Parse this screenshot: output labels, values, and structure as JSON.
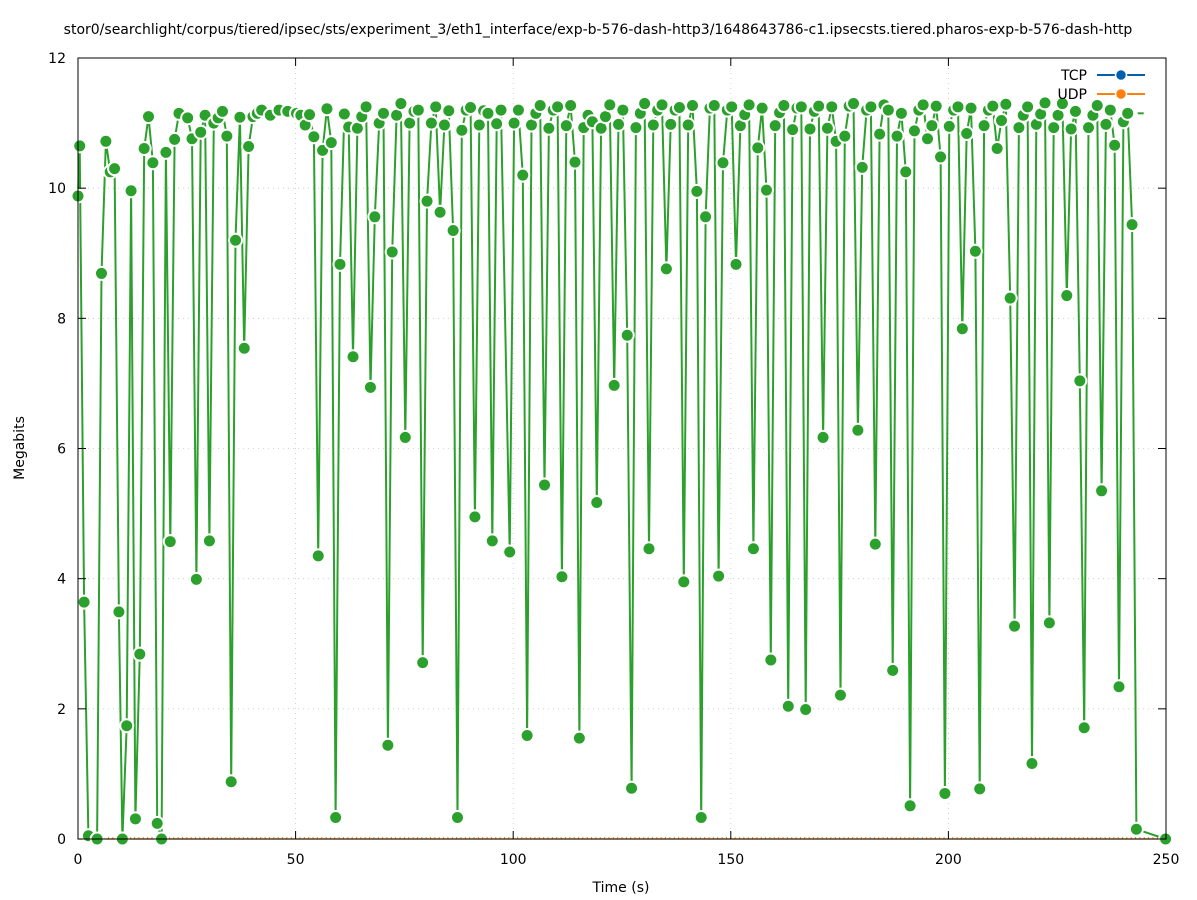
{
  "chart_data": {
    "type": "line",
    "title": "stor0/searchlight/corpus/tiered/ipsec/sts/experiment_3/eth1_interface/exp-b-576-dash-http3/1648643786-c1.ipsecsts.tiered.pharos-exp-b-576-dash-http",
    "xlabel": "Time (s)",
    "ylabel": "Megabits",
    "xlim": [
      0,
      250
    ],
    "ylim": [
      0,
      12
    ],
    "x_ticks": [
      0,
      50,
      100,
      150,
      200,
      250
    ],
    "y_ticks": [
      0,
      2,
      4,
      6,
      8,
      10,
      12
    ],
    "grid": true,
    "legend_position": "top-right",
    "legend": [
      {
        "name": "TCP",
        "color": "#0060ad"
      },
      {
        "name": "UDP",
        "color": "#ff7f0e"
      }
    ],
    "series": [
      {
        "name": "TCP",
        "color": "#2ca02c",
        "points": [
          [
            0,
            9.88
          ],
          [
            0.4,
            10.65
          ],
          [
            1.4,
            3.64
          ],
          [
            2.4,
            0.05
          ],
          [
            4.4,
            0.0
          ],
          [
            5.4,
            8.69
          ],
          [
            6.4,
            10.72
          ],
          [
            7.4,
            10.25
          ],
          [
            8.4,
            10.3
          ],
          [
            9.4,
            3.49
          ],
          [
            10.2,
            0.0
          ],
          [
            11.2,
            1.74
          ],
          [
            12.2,
            9.96
          ],
          [
            13.2,
            0.31
          ],
          [
            14.2,
            2.84
          ],
          [
            15.2,
            10.61
          ],
          [
            16.2,
            11.1
          ],
          [
            17.2,
            10.39
          ],
          [
            18.2,
            0.24
          ],
          [
            19.2,
            0.0
          ],
          [
            20.2,
            10.55
          ],
          [
            21.2,
            4.57
          ],
          [
            22.2,
            10.75
          ],
          [
            23.2,
            11.15
          ],
          [
            25.2,
            11.08
          ],
          [
            26.2,
            10.76
          ],
          [
            27.2,
            3.99
          ],
          [
            28.2,
            10.86
          ],
          [
            29.2,
            11.12
          ],
          [
            30.2,
            4.58
          ],
          [
            31.2,
            11.0
          ],
          [
            32.2,
            11.08
          ],
          [
            33.2,
            11.18
          ],
          [
            34.2,
            10.8
          ],
          [
            35.2,
            0.88
          ],
          [
            36.2,
            9.2
          ],
          [
            37.2,
            11.09
          ],
          [
            38.2,
            7.54
          ],
          [
            39.2,
            10.64
          ],
          [
            40.2,
            11.1
          ],
          [
            41.2,
            11.15
          ],
          [
            42.2,
            11.2
          ],
          [
            44.2,
            11.12
          ],
          [
            46.2,
            11.2
          ],
          [
            48.2,
            11.18
          ],
          [
            50.2,
            11.15
          ],
          [
            51.2,
            11.12
          ],
          [
            52.2,
            10.97
          ],
          [
            53.2,
            11.13
          ],
          [
            54.2,
            10.79
          ],
          [
            55.2,
            4.35
          ],
          [
            56.2,
            10.58
          ],
          [
            57.2,
            11.22
          ],
          [
            58.2,
            10.7
          ],
          [
            59.2,
            0.33
          ],
          [
            60.2,
            8.83
          ],
          [
            61.2,
            11.14
          ],
          [
            62.2,
            10.94
          ],
          [
            63.2,
            7.41
          ],
          [
            64.2,
            10.92
          ],
          [
            65.2,
            11.1
          ],
          [
            66.2,
            11.25
          ],
          [
            67.2,
            6.94
          ],
          [
            68.2,
            9.56
          ],
          [
            69.2,
            11.0
          ],
          [
            70.2,
            11.15
          ],
          [
            71.2,
            1.44
          ],
          [
            72.2,
            9.02
          ],
          [
            73.2,
            11.12
          ],
          [
            74.2,
            11.3
          ],
          [
            75.2,
            6.17
          ],
          [
            76.2,
            11.0
          ],
          [
            77.2,
            11.18
          ],
          [
            78.2,
            11.2
          ],
          [
            79.2,
            2.71
          ],
          [
            80.2,
            9.8
          ],
          [
            81.2,
            11.0
          ],
          [
            82.2,
            11.25
          ],
          [
            83.2,
            9.63
          ],
          [
            84.2,
            10.97
          ],
          [
            85.2,
            11.19
          ],
          [
            86.2,
            9.35
          ],
          [
            87.2,
            0.33
          ],
          [
            88.2,
            10.89
          ],
          [
            89.2,
            11.2
          ],
          [
            90.2,
            11.24
          ],
          [
            91.2,
            4.95
          ],
          [
            92.2,
            10.97
          ],
          [
            93.2,
            11.19
          ],
          [
            94.2,
            11.15
          ],
          [
            95.2,
            4.58
          ],
          [
            96.2,
            10.99
          ],
          [
            97.2,
            11.2
          ],
          [
            99.2,
            4.41
          ],
          [
            100.2,
            11.0
          ],
          [
            101.2,
            11.2
          ],
          [
            102.2,
            10.2
          ],
          [
            103.2,
            1.59
          ],
          [
            104.2,
            10.97
          ],
          [
            105.2,
            11.15
          ],
          [
            106.2,
            11.27
          ],
          [
            107.2,
            5.44
          ],
          [
            108.2,
            10.92
          ],
          [
            109.2,
            11.2
          ],
          [
            110.2,
            11.25
          ],
          [
            111.2,
            4.03
          ],
          [
            112.2,
            10.96
          ],
          [
            113.2,
            11.27
          ],
          [
            114.2,
            10.4
          ],
          [
            115.2,
            1.55
          ],
          [
            116.2,
            10.93
          ],
          [
            117.2,
            11.12
          ],
          [
            118.2,
            11.02
          ],
          [
            119.2,
            5.17
          ],
          [
            120.2,
            10.92
          ],
          [
            121.2,
            11.1
          ],
          [
            122.2,
            11.28
          ],
          [
            123.2,
            6.97
          ],
          [
            124.2,
            10.98
          ],
          [
            125.2,
            11.2
          ],
          [
            126.2,
            7.74
          ],
          [
            127.2,
            0.78
          ],
          [
            128.2,
            10.93
          ],
          [
            129.2,
            11.15
          ],
          [
            130.2,
            11.3
          ],
          [
            131.2,
            4.46
          ],
          [
            132.2,
            10.97
          ],
          [
            133.2,
            11.2
          ],
          [
            134.2,
            11.28
          ],
          [
            135.2,
            8.76
          ],
          [
            136.2,
            10.98
          ],
          [
            137.2,
            11.2
          ],
          [
            138.2,
            11.24
          ],
          [
            139.2,
            3.95
          ],
          [
            140.2,
            10.97
          ],
          [
            141.2,
            11.27
          ],
          [
            142.2,
            9.95
          ],
          [
            143.2,
            0.33
          ],
          [
            144.2,
            9.56
          ],
          [
            145.2,
            11.23
          ],
          [
            146.2,
            11.27
          ],
          [
            147.2,
            4.04
          ],
          [
            148.2,
            10.39
          ],
          [
            149.2,
            11.2
          ],
          [
            150.2,
            11.25
          ],
          [
            151.2,
            8.83
          ],
          [
            152.2,
            10.96
          ],
          [
            153.2,
            11.13
          ],
          [
            154.2,
            11.28
          ],
          [
            155.2,
            4.46
          ],
          [
            156.2,
            10.62
          ],
          [
            157.2,
            11.23
          ],
          [
            158.2,
            9.97
          ],
          [
            159.2,
            2.75
          ],
          [
            160.2,
            10.96
          ],
          [
            161.2,
            11.16
          ],
          [
            162.2,
            11.27
          ],
          [
            163.2,
            2.04
          ],
          [
            164.2,
            10.9
          ],
          [
            165.2,
            11.23
          ],
          [
            166.2,
            11.25
          ],
          [
            167.2,
            1.99
          ],
          [
            168.2,
            10.91
          ],
          [
            169.2,
            11.18
          ],
          [
            170.2,
            11.26
          ],
          [
            171.2,
            6.17
          ],
          [
            172.2,
            10.92
          ],
          [
            173.2,
            11.25
          ],
          [
            174.2,
            10.72
          ],
          [
            175.2,
            2.21
          ],
          [
            176.2,
            10.8
          ],
          [
            177.2,
            11.26
          ],
          [
            178.2,
            11.3
          ],
          [
            179.2,
            6.28
          ],
          [
            180.2,
            10.32
          ],
          [
            181.2,
            11.2
          ],
          [
            182.2,
            11.25
          ],
          [
            183.2,
            4.53
          ],
          [
            184.2,
            10.83
          ],
          [
            185.2,
            11.28
          ],
          [
            186.2,
            11.2
          ],
          [
            187.2,
            2.59
          ],
          [
            188.2,
            10.8
          ],
          [
            189.2,
            11.15
          ],
          [
            190.2,
            10.25
          ],
          [
            191.2,
            0.51
          ],
          [
            192.2,
            10.88
          ],
          [
            193.2,
            11.2
          ],
          [
            194.2,
            11.28
          ],
          [
            195.2,
            10.76
          ],
          [
            196.2,
            10.96
          ],
          [
            197.2,
            11.26
          ],
          [
            198.2,
            10.48
          ],
          [
            199.2,
            0.7
          ],
          [
            200.2,
            10.95
          ],
          [
            201.2,
            11.2
          ],
          [
            202.2,
            11.25
          ],
          [
            203.2,
            7.84
          ],
          [
            204.2,
            10.84
          ],
          [
            205.2,
            11.23
          ],
          [
            206.2,
            9.03
          ],
          [
            207.2,
            0.77
          ],
          [
            208.2,
            10.96
          ],
          [
            209.2,
            11.2
          ],
          [
            210.2,
            11.26
          ],
          [
            211.2,
            10.61
          ],
          [
            212.2,
            11.04
          ],
          [
            213.2,
            11.29
          ],
          [
            214.2,
            8.31
          ],
          [
            215.2,
            3.27
          ],
          [
            216.2,
            10.93
          ],
          [
            217.2,
            11.12
          ],
          [
            218.2,
            11.25
          ],
          [
            219.2,
            1.16
          ],
          [
            220.2,
            10.98
          ],
          [
            221.2,
            11.14
          ],
          [
            222.2,
            11.31
          ],
          [
            223.2,
            3.32
          ],
          [
            224.2,
            10.93
          ],
          [
            225.2,
            11.12
          ],
          [
            226.2,
            11.3
          ],
          [
            227.2,
            8.35
          ],
          [
            228.2,
            10.91
          ],
          [
            229.2,
            11.18
          ],
          [
            230.2,
            7.04
          ],
          [
            231.2,
            1.71
          ],
          [
            232.2,
            10.93
          ],
          [
            233.2,
            11.12
          ],
          [
            234.2,
            11.27
          ],
          [
            235.2,
            5.35
          ],
          [
            236.2,
            10.98
          ],
          [
            237.2,
            11.2
          ],
          [
            238.2,
            10.66
          ],
          [
            239.2,
            2.34
          ],
          [
            240.2,
            11.02
          ],
          [
            241.2,
            11.15
          ],
          [
            242.2,
            9.44
          ],
          [
            243.2,
            0.15
          ],
          [
            249.9,
            0.0
          ]
        ]
      },
      {
        "name": "UDP",
        "color": "#ff7f0e",
        "points": [
          [
            0,
            0
          ],
          [
            250,
            0
          ]
        ]
      }
    ]
  }
}
